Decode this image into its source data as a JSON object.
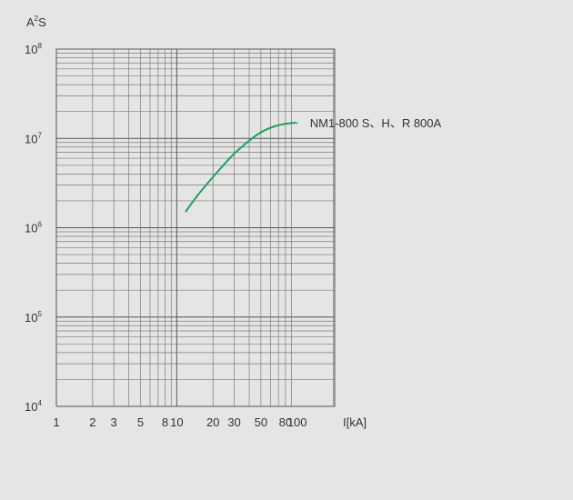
{
  "chart_data": {
    "type": "line",
    "title": "",
    "ylabel": {
      "base": "A",
      "sup": "2",
      "rest": "S"
    },
    "xlabel": "I[kA]",
    "x_scale": "log",
    "y_scale": "log",
    "xlim": [
      1,
      100
    ],
    "ylim": [
      10000,
      100000000
    ],
    "grid": true,
    "x_tick_labels": [
      {
        "value": 1,
        "label": "1"
      },
      {
        "value": 2,
        "label": "2"
      },
      {
        "value": 3,
        "label": "3"
      },
      {
        "value": 5,
        "label": "5"
      },
      {
        "value": 8,
        "label": "8"
      },
      {
        "value": 10,
        "label": "10"
      },
      {
        "value": 20,
        "label": "20"
      },
      {
        "value": 30,
        "label": "30"
      },
      {
        "value": 50,
        "label": "50"
      },
      {
        "value": 80,
        "label": "80"
      },
      {
        "value": 100,
        "label": "100"
      }
    ],
    "y_tick_labels": [
      {
        "value": 100000000,
        "base": "10",
        "exp": "8"
      },
      {
        "value": 10000000,
        "base": "10",
        "exp": "7"
      },
      {
        "value": 1000000,
        "base": "10",
        "exp": "6"
      },
      {
        "value": 100000,
        "base": "10",
        "exp": "5"
      },
      {
        "value": 10000,
        "base": "10",
        "exp": "4"
      }
    ],
    "series": [
      {
        "name": "NM1-800 S、H、R 800A",
        "color": "#1aa35a",
        "x": [
          11.8,
          15,
          20,
          25,
          30,
          40,
          50,
          60,
          70,
          80,
          90,
          100
        ],
        "y": [
          1500000,
          2350000,
          3700000,
          5200000,
          6800000,
          9500000,
          11800000,
          13200000,
          14100000,
          14600000,
          14900000,
          15000000
        ]
      }
    ]
  }
}
